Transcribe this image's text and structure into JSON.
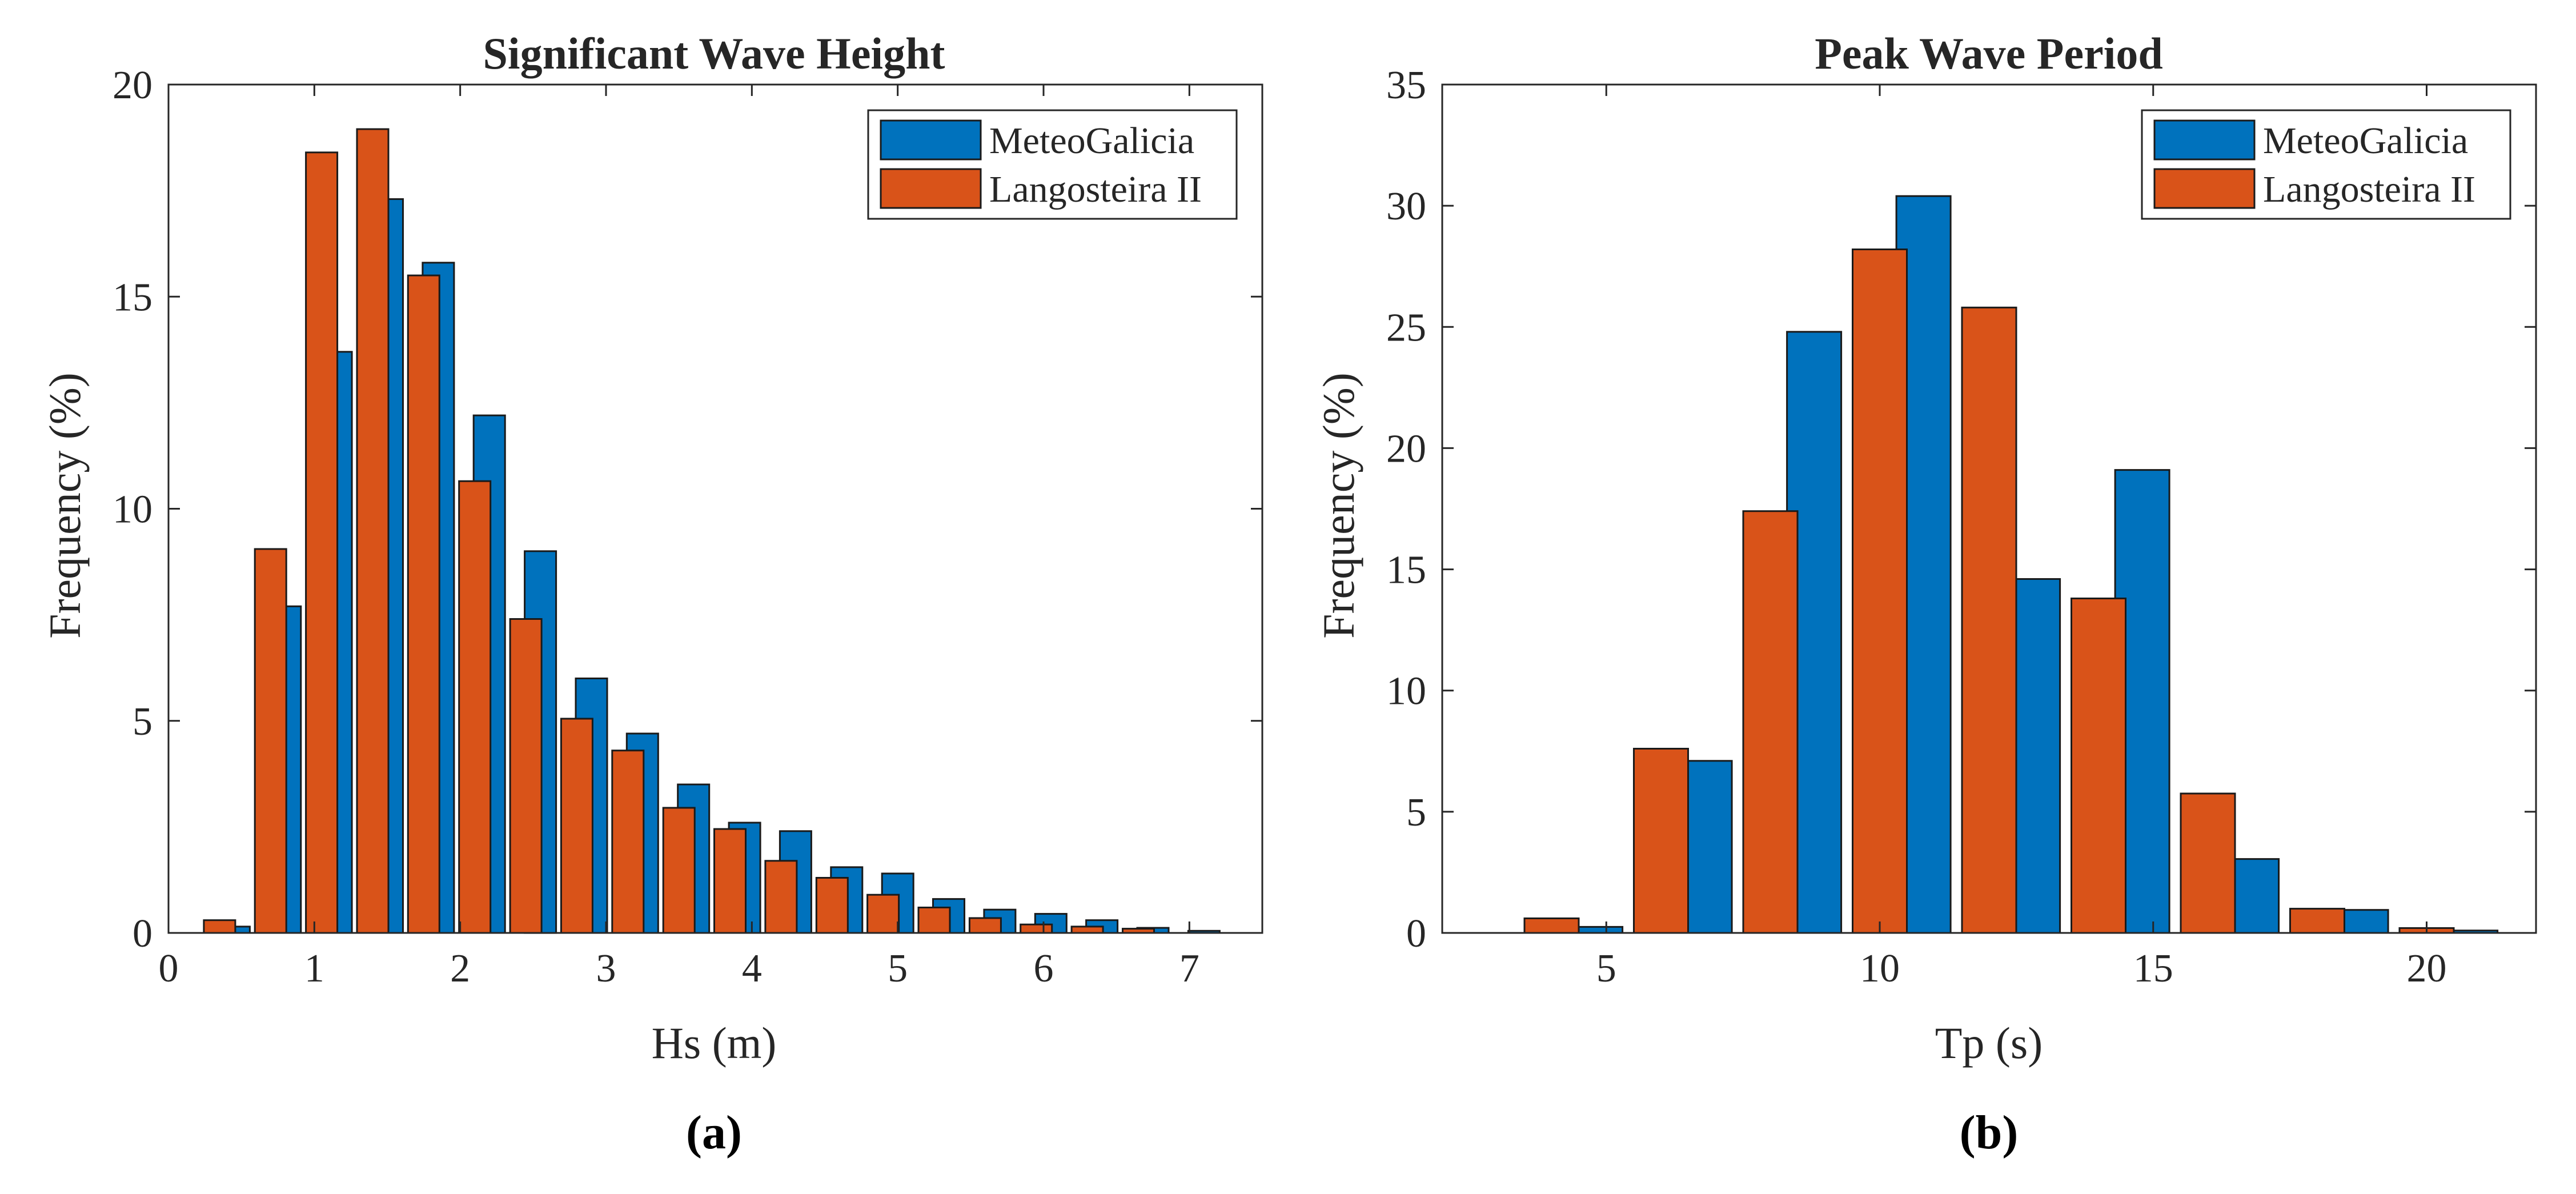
{
  "chart_data": [
    {
      "type": "bar",
      "title": "Significant Wave Height",
      "xlabel": "Hs (m)",
      "ylabel": "Frequency (%)",
      "xlim": [
        0,
        7.5
      ],
      "ylim": [
        0,
        20
      ],
      "xticks": [
        0,
        1,
        2,
        3,
        4,
        5,
        6,
        7
      ],
      "yticks": [
        0,
        5,
        10,
        15,
        20
      ],
      "legend_position": "top-right",
      "caption": "(a)",
      "series": [
        {
          "name": "MeteoGalicia",
          "color": "#0072BD",
          "x": [
            0.45,
            0.8,
            1.15,
            1.5,
            1.85,
            2.2,
            2.55,
            2.9,
            3.25,
            3.6,
            3.95,
            4.3,
            4.65,
            5.0,
            5.35,
            5.7,
            6.05,
            6.4,
            6.75,
            7.1
          ],
          "values": [
            0.15,
            7.7,
            13.7,
            17.3,
            15.8,
            12.2,
            9.0,
            6.0,
            4.7,
            3.5,
            2.6,
            2.4,
            1.55,
            1.4,
            0.8,
            0.55,
            0.45,
            0.3,
            0.12,
            0.05
          ]
        },
        {
          "name": "Langosteira II",
          "color": "#D95319",
          "x": [
            0.35,
            0.7,
            1.05,
            1.4,
            1.75,
            2.1,
            2.45,
            2.8,
            3.15,
            3.5,
            3.85,
            4.2,
            4.55,
            4.9,
            5.25,
            5.6,
            5.95,
            6.3,
            6.65
          ],
          "values": [
            0.3,
            9.05,
            18.4,
            18.95,
            15.5,
            10.65,
            7.4,
            5.05,
            4.3,
            2.95,
            2.45,
            1.7,
            1.3,
            0.9,
            0.6,
            0.35,
            0.2,
            0.15,
            0.1
          ]
        }
      ]
    },
    {
      "type": "bar",
      "title": "Peak Wave Period",
      "xlabel": "Tp (s)",
      "ylabel": "Frequency (%)",
      "xlim": [
        2,
        22
      ],
      "ylim": [
        0,
        35
      ],
      "xticks": [
        5,
        10,
        15,
        20
      ],
      "yticks": [
        0,
        5,
        10,
        15,
        20,
        25,
        30,
        35
      ],
      "legend_position": "top-right",
      "caption": "(b)",
      "series": [
        {
          "name": "MeteoGalicia",
          "color": "#0072BD",
          "x": [
            4.8,
            6.8,
            8.8,
            10.8,
            12.8,
            14.8,
            16.8,
            18.8,
            20.8
          ],
          "values": [
            0.25,
            7.1,
            24.8,
            30.4,
            14.6,
            19.1,
            3.05,
            0.95,
            0.1
          ]
        },
        {
          "name": "Langosteira II",
          "color": "#D95319",
          "x": [
            4.0,
            6.0,
            8.0,
            10.0,
            12.0,
            14.0,
            16.0,
            18.0,
            20.0
          ],
          "values": [
            0.6,
            7.6,
            17.4,
            28.2,
            25.8,
            13.8,
            5.75,
            1.0,
            0.2
          ]
        }
      ]
    }
  ]
}
